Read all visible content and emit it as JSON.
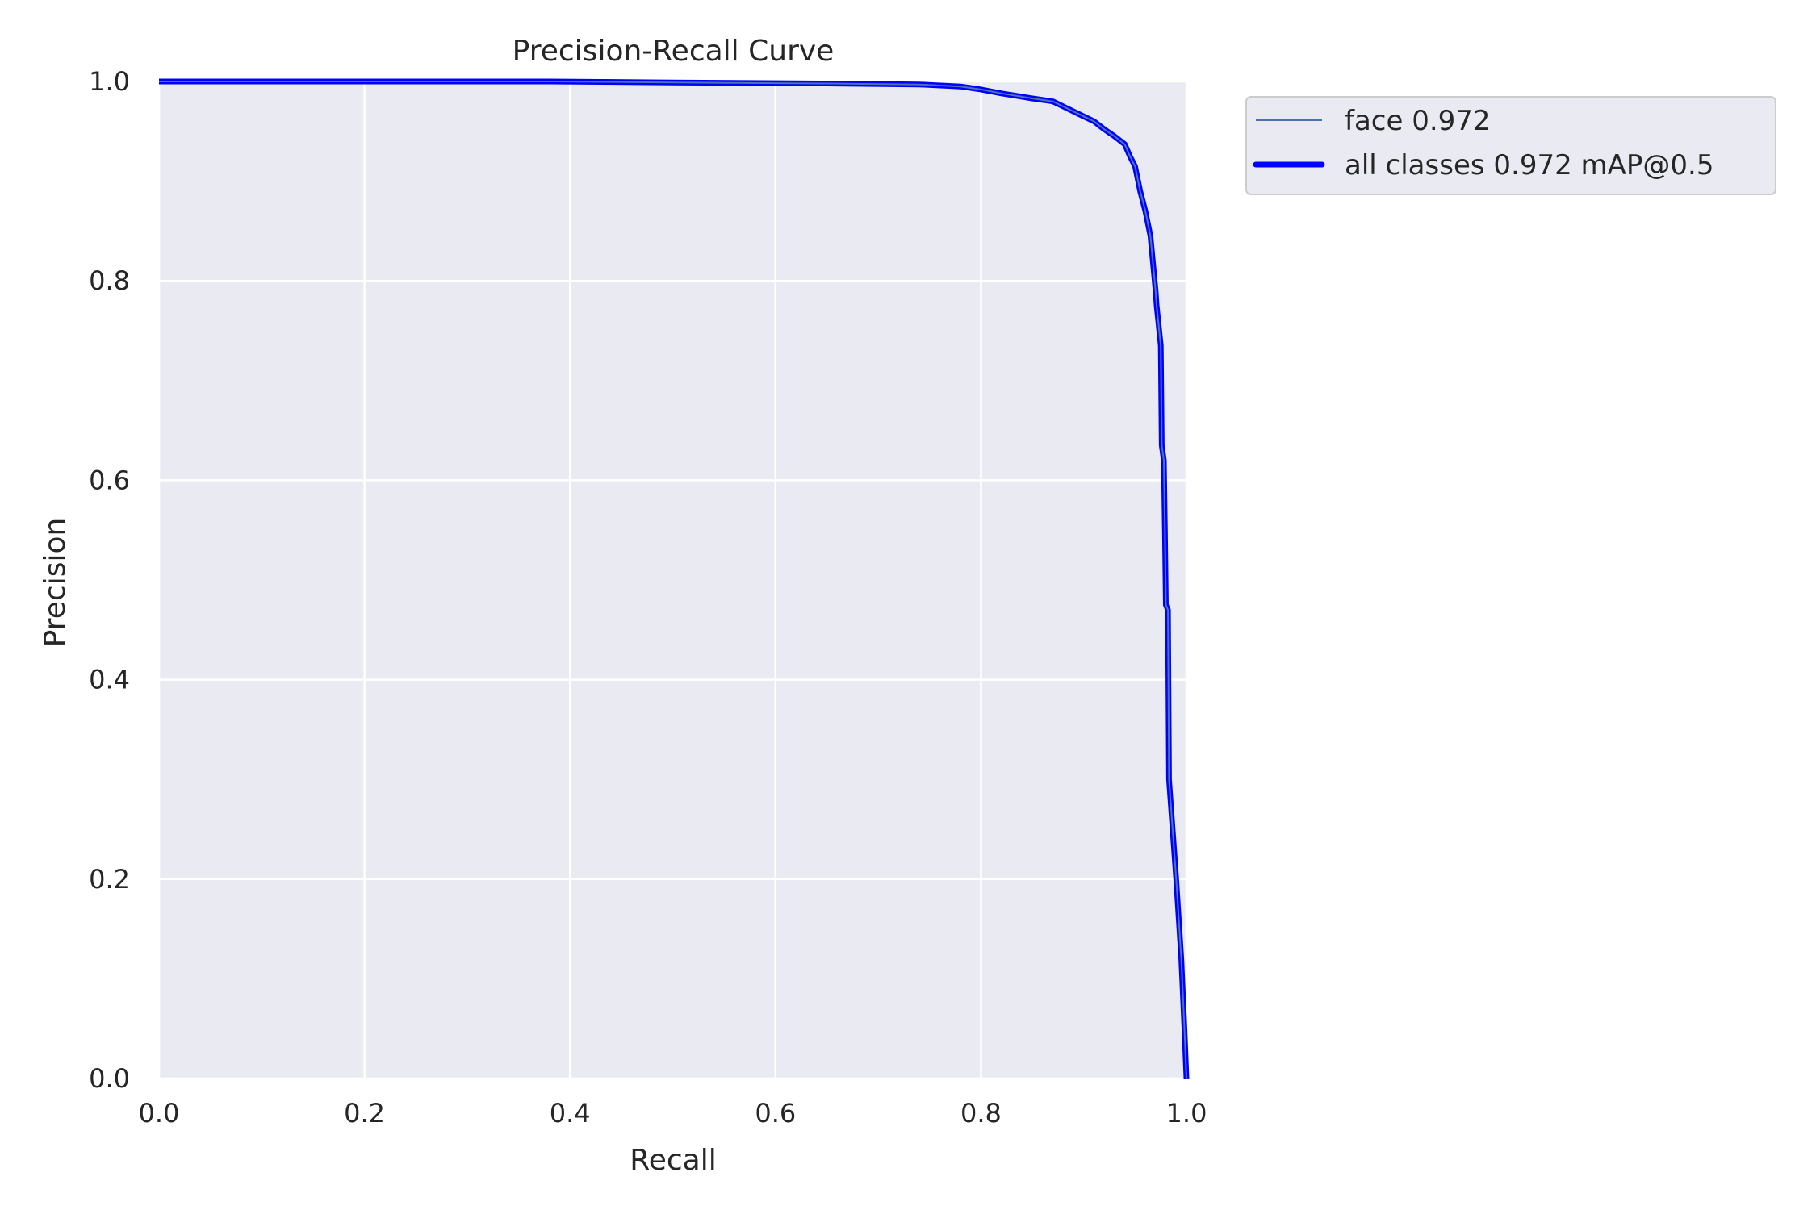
{
  "chart_data": {
    "type": "line",
    "title": "Precision-Recall Curve",
    "xlabel": "Recall",
    "ylabel": "Precision",
    "xlim": [
      0.0,
      1.0
    ],
    "ylim": [
      0.0,
      1.0
    ],
    "xticks": [
      "0.0",
      "0.2",
      "0.4",
      "0.6",
      "0.8",
      "1.0"
    ],
    "yticks": [
      "0.0",
      "0.2",
      "0.4",
      "0.6",
      "0.8",
      "1.0"
    ],
    "grid": true,
    "legend_position": "outside-right-top",
    "background_color": "#eaeaf2",
    "grid_color": "#ffffff",
    "series": [
      {
        "name": "face 0.972",
        "color": "#4c72b0",
        "line_style": "thin",
        "x": [
          0.0,
          0.38,
          0.5,
          0.65,
          0.74,
          0.78,
          0.8,
          0.82,
          0.85,
          0.87,
          0.88,
          0.9,
          0.91,
          0.92,
          0.93,
          0.94,
          0.945,
          0.95,
          0.955,
          0.96,
          0.965,
          0.97,
          0.971,
          0.975,
          0.976,
          0.978,
          0.979,
          0.98,
          0.982,
          0.983,
          0.99,
          0.995,
          0.998,
          1.0
        ],
        "y": [
          1.0,
          1.0,
          0.999,
          0.998,
          0.997,
          0.995,
          0.992,
          0.988,
          0.983,
          0.98,
          0.975,
          0.965,
          0.96,
          0.952,
          0.945,
          0.937,
          0.925,
          0.915,
          0.89,
          0.87,
          0.845,
          0.79,
          0.775,
          0.735,
          0.635,
          0.62,
          0.55,
          0.475,
          0.47,
          0.3,
          0.2,
          0.12,
          0.05,
          0.0
        ]
      },
      {
        "name": "all classes 0.972 mAP@0.5",
        "color": "#0000ff",
        "line_style": "thick",
        "x": [
          0.0,
          0.38,
          0.5,
          0.65,
          0.74,
          0.78,
          0.8,
          0.82,
          0.85,
          0.87,
          0.88,
          0.9,
          0.91,
          0.92,
          0.93,
          0.94,
          0.945,
          0.95,
          0.955,
          0.96,
          0.965,
          0.97,
          0.971,
          0.975,
          0.976,
          0.978,
          0.979,
          0.98,
          0.982,
          0.983,
          0.99,
          0.995,
          0.998,
          1.0
        ],
        "y": [
          1.0,
          1.0,
          0.999,
          0.998,
          0.997,
          0.995,
          0.992,
          0.988,
          0.983,
          0.98,
          0.975,
          0.965,
          0.96,
          0.952,
          0.945,
          0.937,
          0.925,
          0.915,
          0.89,
          0.87,
          0.845,
          0.79,
          0.775,
          0.735,
          0.635,
          0.62,
          0.55,
          0.475,
          0.47,
          0.3,
          0.2,
          0.12,
          0.05,
          0.0
        ]
      }
    ]
  }
}
